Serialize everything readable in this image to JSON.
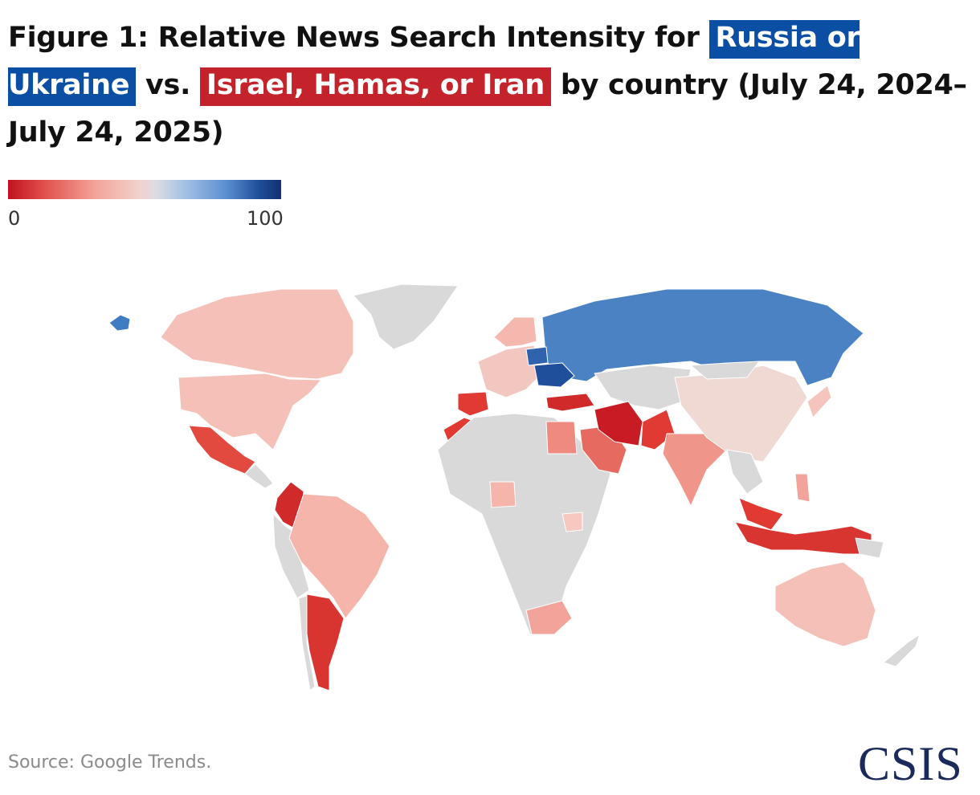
{
  "title": {
    "prefix": "Figure 1: Relative News Search Intensity for",
    "topic_blue": "Russia or Ukraine",
    "middle": "vs.",
    "topic_red": "Israel, Hamas, or Iran",
    "suffix": "by country (July 24, 2024–July 24, 2025)"
  },
  "legend": {
    "min": "0",
    "max": "100"
  },
  "source": "Source: Google Trends.",
  "logo": "CSIS",
  "colors": {
    "blue_highlight": "#0a4fa3",
    "red_highlight": "#c4232b",
    "no_data": "#d9d9d9"
  },
  "map": {
    "scale_min": 0,
    "scale_max": 100,
    "countries": [
      {
        "name": "Russia",
        "value": 80
      },
      {
        "name": "Ukraine",
        "value": 92
      },
      {
        "name": "Belarus",
        "value": 85
      },
      {
        "name": "Alaska (US)",
        "value": 80
      },
      {
        "name": "Latvia",
        "value": 62
      },
      {
        "name": "Estonia",
        "value": 60
      },
      {
        "name": "Canada",
        "value": 35
      },
      {
        "name": "United States",
        "value": 35
      },
      {
        "name": "Mexico",
        "value": 18
      },
      {
        "name": "Colombia",
        "value": 10
      },
      {
        "name": "Argentina",
        "value": 12
      },
      {
        "name": "Brazil",
        "value": 33
      },
      {
        "name": "Spain",
        "value": 12
      },
      {
        "name": "Morocco",
        "value": 12
      },
      {
        "name": "Turkey",
        "value": 10
      },
      {
        "name": "Iran",
        "value": 5
      },
      {
        "name": "Pakistan",
        "value": 10
      },
      {
        "name": "Saudi Arabia",
        "value": 20
      },
      {
        "name": "Egypt",
        "value": 25
      },
      {
        "name": "India",
        "value": 28
      },
      {
        "name": "Indonesia",
        "value": 8
      },
      {
        "name": "Malaysia",
        "value": 12
      },
      {
        "name": "China",
        "value": 45
      },
      {
        "name": "Australia",
        "value": 35
      },
      {
        "name": "South Africa",
        "value": 30
      },
      {
        "name": "Nigeria",
        "value": 30
      },
      {
        "name": "Kenya",
        "value": 40
      },
      {
        "name": "Philippines",
        "value": 30
      }
    ]
  }
}
